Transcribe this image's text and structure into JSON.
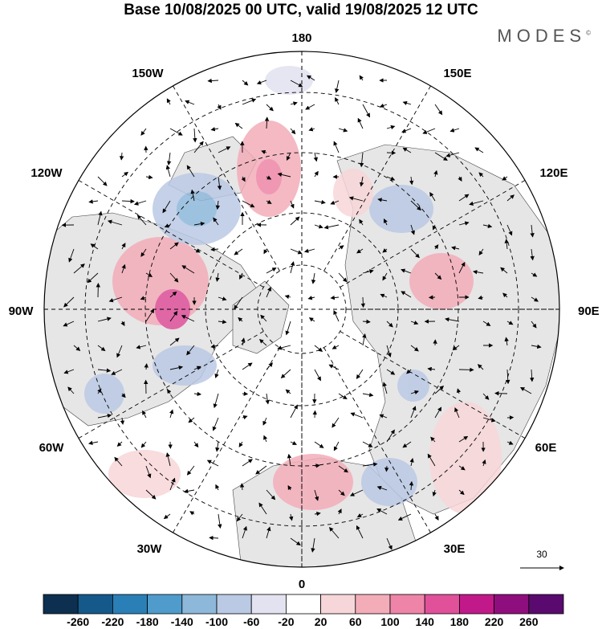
{
  "header": {
    "title": "Base 10/08/2025 00 UTC, valid 19/08/2025 12 UTC",
    "brand": "MODES",
    "brand_mark": "©"
  },
  "map": {
    "projection": "polar-stereographic",
    "longitude_labels": [
      "180",
      "150E",
      "120E",
      "90E",
      "60E",
      "30E",
      "0",
      "30W",
      "60W",
      "90W",
      "120W",
      "150W"
    ],
    "vector_reference": {
      "label": "30"
    }
  },
  "colorbar": {
    "labels": [
      "-260",
      "-220",
      "-180",
      "-140",
      "-100",
      "-60",
      "-20",
      "20",
      "60",
      "100",
      "140",
      "180",
      "220",
      "260"
    ],
    "colors": [
      "#0d2f50",
      "#15598a",
      "#2a7fb7",
      "#4f9bcb",
      "#8db8da",
      "#bac9e4",
      "#e2e2f0",
      "#ffffff",
      "#f7d6d9",
      "#f3adb9",
      "#ee85a8",
      "#e0519a",
      "#c2198a",
      "#8f0e7d",
      "#5a0a6e"
    ]
  },
  "colors": {
    "land": "#e6e6e6",
    "ocean": "#ffffff",
    "grid": "#000000"
  }
}
